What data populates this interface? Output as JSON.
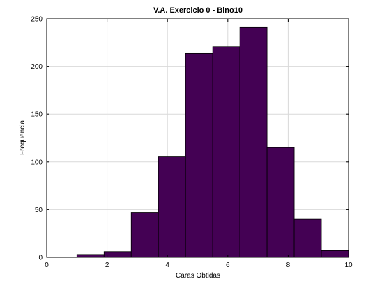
{
  "chart_data": {
    "type": "bar",
    "title": "V.A. Exercicio 0 - Bino10",
    "xlabel": "Caras Obtidas",
    "ylabel": "Frequencia",
    "xlim": [
      0,
      10
    ],
    "ylim": [
      0,
      250
    ],
    "xticks": [
      0,
      2,
      4,
      6,
      8,
      10
    ],
    "yticks": [
      0,
      50,
      100,
      150,
      200,
      250
    ],
    "grid": true,
    "bar_color": "#440154",
    "bins": [
      {
        "x0": 0.0,
        "x1": 0.9,
        "value": 0
      },
      {
        "x0": 1.0,
        "x1": 1.9,
        "value": 3
      },
      {
        "x0": 1.9,
        "x1": 2.8,
        "value": 6
      },
      {
        "x0": 2.8,
        "x1": 3.7,
        "value": 47
      },
      {
        "x0": 3.7,
        "x1": 4.6,
        "value": 106
      },
      {
        "x0": 4.6,
        "x1": 5.5,
        "value": 214
      },
      {
        "x0": 5.5,
        "x1": 6.4,
        "value": 221
      },
      {
        "x0": 6.4,
        "x1": 7.3,
        "value": 241
      },
      {
        "x0": 7.3,
        "x1": 8.2,
        "value": 115
      },
      {
        "x0": 8.2,
        "x1": 9.1,
        "value": 40
      },
      {
        "x0": 9.1,
        "x1": 10.0,
        "value": 7
      }
    ]
  }
}
